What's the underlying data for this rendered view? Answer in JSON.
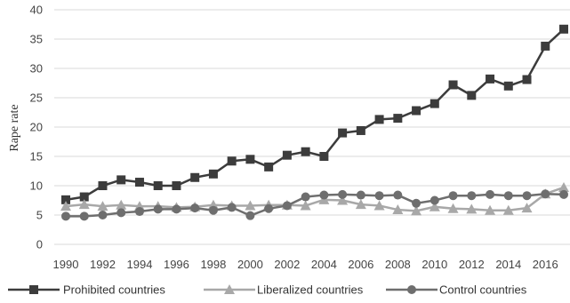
{
  "chart_data": {
    "type": "line",
    "title": "",
    "xlabel": "",
    "ylabel": "Rape rate",
    "ylim": [
      0,
      40
    ],
    "yticks": [
      0,
      5,
      10,
      15,
      20,
      25,
      30,
      35,
      40
    ],
    "xticks": [
      1990,
      1992,
      1994,
      1996,
      1998,
      2000,
      2002,
      2004,
      2006,
      2008,
      2010,
      2012,
      2014,
      2016
    ],
    "grid": "horizontal",
    "legend_position": "bottom",
    "x": [
      1990,
      1991,
      1992,
      1993,
      1994,
      1995,
      1996,
      1997,
      1998,
      1999,
      2000,
      2001,
      2002,
      2003,
      2004,
      2005,
      2006,
      2007,
      2008,
      2009,
      2010,
      2011,
      2012,
      2013,
      2014,
      2015,
      2016,
      2017
    ],
    "series": [
      {
        "name": "Prohibited countries",
        "marker": "square",
        "color": "#3c3c3c",
        "values": [
          7.6,
          8.1,
          10.0,
          11.0,
          10.6,
          10.0,
          10.0,
          11.4,
          12.0,
          14.2,
          14.5,
          13.2,
          15.2,
          15.8,
          15.0,
          19.0,
          19.4,
          21.3,
          21.5,
          22.8,
          24.0,
          27.2,
          25.4,
          28.2,
          27.0,
          28.1,
          33.8,
          36.7
        ]
      },
      {
        "name": "Liberalized countries",
        "marker": "triangle",
        "color": "#a8a8a8",
        "values": [
          6.5,
          6.8,
          6.5,
          6.7,
          6.5,
          6.5,
          6.3,
          6.4,
          6.7,
          6.6,
          6.6,
          6.7,
          6.7,
          6.6,
          7.6,
          7.5,
          6.8,
          6.6,
          5.9,
          5.7,
          6.4,
          6.1,
          6.0,
          5.8,
          5.8,
          6.2,
          8.6,
          9.7
        ]
      },
      {
        "name": "Control countries",
        "marker": "circle",
        "color": "#6e6e6e",
        "values": [
          4.8,
          4.8,
          5.0,
          5.4,
          5.6,
          6.0,
          6.0,
          6.2,
          5.8,
          6.3,
          4.9,
          6.1,
          6.6,
          8.1,
          8.4,
          8.5,
          8.4,
          8.3,
          8.4,
          7.0,
          7.5,
          8.3,
          8.3,
          8.5,
          8.3,
          8.3,
          8.6,
          8.5
        ]
      }
    ]
  }
}
